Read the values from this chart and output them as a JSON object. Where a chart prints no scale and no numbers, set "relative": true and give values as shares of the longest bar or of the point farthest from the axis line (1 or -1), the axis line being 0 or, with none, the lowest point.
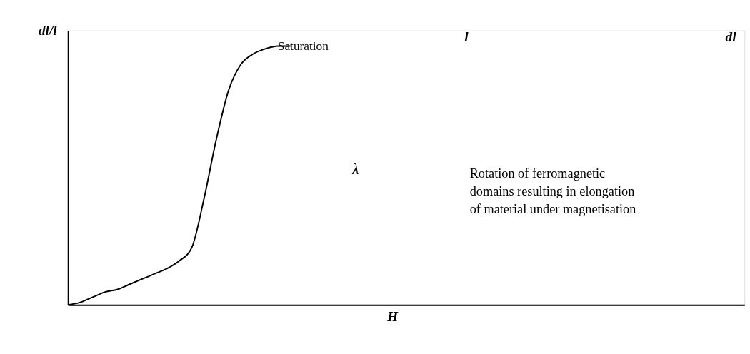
{
  "chart_data": {
    "type": "line",
    "relative": true,
    "ylabel": "dl/l",
    "categories": [
      null,
      null,
      null,
      null,
      null,
      null,
      null,
      null,
      null,
      null,
      null,
      null,
      null,
      null,
      null,
      null,
      null,
      null,
      null
    ],
    "series": [
      {
        "color": "#000000",
        "values": [
          0,
          0.01,
          0.03,
          0.05,
          0.06,
          0.08,
          0.1,
          0.12,
          0.14,
          0.17,
          0.22,
          0.41,
          0.64,
          0.83,
          0.93,
          0.97,
          0.99,
          1.0,
          1.0
        ]
      }
    ],
    "marker": "none",
    "line_style": "solid",
    "grid": false,
    "tick_labels": false,
    "annotations": [
      "H",
      "Saturation",
      "λ",
      "l",
      "dl",
      "Rotation of ferromagnetic domains resulting in elongation of material under magnetisation"
    ]
  }
}
